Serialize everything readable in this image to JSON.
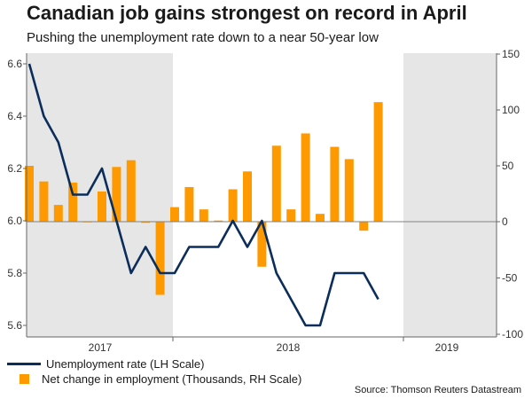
{
  "title": "Canadian job gains strongest on record in April",
  "subtitle": "Pushing the unemployment rate down to a near 50-year low",
  "source": "Source: Thomson Reuters Datastream",
  "colors": {
    "line": "#0b2d5b",
    "bar": "#ff9900",
    "shade": "#e6e6e6",
    "zero_line": "#808080"
  },
  "chart_data": {
    "type": "bar+line",
    "months": [
      "2016-12",
      "2017-01",
      "2017-02",
      "2017-03",
      "2017-04",
      "2017-05",
      "2017-06",
      "2017-07",
      "2017-08",
      "2017-09",
      "2017-10",
      "2017-11",
      "2017-12",
      "2018-01",
      "2018-02",
      "2018-03",
      "2018-04",
      "2018-05",
      "2018-06",
      "2018-07",
      "2018-08",
      "2018-09",
      "2018-10",
      "2018-11",
      "2018-12",
      "2019-01",
      "2019-02",
      "2019-03",
      "2019-04"
    ],
    "x_tick_labels": [
      "2017",
      "2018",
      "2019"
    ],
    "shaded_years": [
      "2017",
      "2019"
    ],
    "series": [
      {
        "name": "Unemployment rate (LH Scale)",
        "type": "line",
        "axis": "left",
        "values": [
          6.6,
          6.4,
          6.3,
          6.1,
          6.1,
          6.2,
          6.0,
          5.8,
          5.9,
          5.8,
          5.8,
          5.9,
          5.9,
          5.9,
          6.0,
          5.9,
          6.0,
          5.8,
          5.7,
          5.6,
          5.6,
          5.8,
          5.8,
          5.8,
          5.7,
          null,
          null,
          null,
          null
        ]
      },
      {
        "name": "Net change in employment (Thousands, RH Scale)",
        "type": "bar",
        "axis": "right",
        "values": [
          50,
          36,
          15,
          35,
          0,
          27,
          49,
          55,
          -1,
          -65,
          13,
          31,
          11,
          1,
          29,
          45,
          -40,
          68,
          11,
          79,
          7,
          67,
          56,
          -8,
          107,
          null,
          null,
          null,
          null
        ]
      }
    ],
    "left_axis": {
      "ylim": [
        5.55,
        6.65
      ],
      "ticks": [
        "5.6",
        "5.8",
        "6.0",
        "6.2",
        "6.4",
        "6.6"
      ]
    },
    "right_axis": {
      "ylim": [
        -100,
        150
      ],
      "ticks": [
        "-100",
        "-50",
        "0",
        "50",
        "100",
        "150"
      ]
    },
    "grid": false,
    "legend_position": "bottom-left"
  }
}
